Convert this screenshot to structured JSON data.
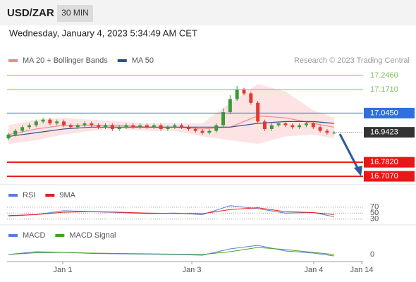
{
  "header": {
    "symbol": "USD/ZAR",
    "timeframe": "30 MIN",
    "datetime": "Wednesday, January 4, 2023 5:34:49 AM CET"
  },
  "chart_data": [
    {
      "type": "candlestick",
      "annotation": "Research © 2023 Trading Central",
      "xlim": [
        -0.2,
        51.2
      ],
      "ylim": [
        16.662,
        17.367
      ],
      "up_color": "#3a9a3a",
      "down_color": "#e03a30",
      "band_color": "#fde3e3",
      "open": [
        16.91,
        16.93,
        16.95,
        16.97,
        16.98,
        17.0,
        17.01,
        16.99,
        17.0,
        16.98,
        16.97,
        16.98,
        16.99,
        16.98,
        16.97,
        16.98,
        16.96,
        16.97,
        16.98,
        16.97,
        16.98,
        16.97,
        16.98,
        16.96,
        16.97,
        16.98,
        16.97,
        16.96,
        16.95,
        16.94,
        16.95,
        16.98,
        17.05,
        17.12,
        17.17,
        17.15,
        17.1,
        17.0,
        16.96,
        16.98,
        16.99,
        16.98,
        16.97,
        16.98,
        16.99,
        16.97,
        16.95,
        16.94
      ],
      "high": [
        16.94,
        16.96,
        16.98,
        16.99,
        17.01,
        17.02,
        17.02,
        17.01,
        17.01,
        16.99,
        16.99,
        17.0,
        17.0,
        16.99,
        16.99,
        16.99,
        16.98,
        16.99,
        16.99,
        16.99,
        16.99,
        16.99,
        16.99,
        16.98,
        16.99,
        16.99,
        16.98,
        16.97,
        16.96,
        16.96,
        16.99,
        17.07,
        17.14,
        17.19,
        17.18,
        17.16,
        17.11,
        17.01,
        16.99,
        17.0,
        17.0,
        16.99,
        16.99,
        17.0,
        17.0,
        16.98,
        16.96,
        16.95
      ],
      "low": [
        16.9,
        16.92,
        16.94,
        16.96,
        16.97,
        16.99,
        16.98,
        16.98,
        16.97,
        16.96,
        16.96,
        16.97,
        16.97,
        16.96,
        16.96,
        16.95,
        16.95,
        16.96,
        16.96,
        16.96,
        16.96,
        16.96,
        16.95,
        16.95,
        16.96,
        16.96,
        16.95,
        16.94,
        16.93,
        16.93,
        16.94,
        16.97,
        17.04,
        17.11,
        17.14,
        17.09,
        16.99,
        16.95,
        16.95,
        16.97,
        16.97,
        16.96,
        16.96,
        16.97,
        16.96,
        16.94,
        16.93,
        16.93
      ],
      "close": [
        16.93,
        16.95,
        16.97,
        16.98,
        17.0,
        17.01,
        16.99,
        17.0,
        16.98,
        16.97,
        16.98,
        16.99,
        16.98,
        16.97,
        16.98,
        16.96,
        16.97,
        16.98,
        16.97,
        16.98,
        16.97,
        16.98,
        16.96,
        16.97,
        16.98,
        16.97,
        16.96,
        16.95,
        16.94,
        16.95,
        16.98,
        17.05,
        17.12,
        17.17,
        17.15,
        17.1,
        17.0,
        16.96,
        16.98,
        16.99,
        16.98,
        16.97,
        16.98,
        16.99,
        16.97,
        16.95,
        16.94,
        16.94
      ],
      "series_x": [
        0,
        4,
        8,
        12,
        16,
        20,
        24,
        28,
        32,
        36,
        40,
        44,
        47
      ],
      "series": [
        {
          "name": "MA 20 + Bollinger Bands",
          "color": "#f08a8a",
          "values": [
            16.93,
            16.96,
            16.98,
            16.98,
            16.98,
            16.97,
            16.97,
            16.96,
            16.97,
            17.03,
            17.02,
            16.99,
            16.97
          ],
          "upper": [
            16.98,
            17.01,
            17.02,
            17.01,
            17.0,
            16.99,
            16.99,
            16.99,
            17.1,
            17.2,
            17.16,
            17.06,
            17.02
          ],
          "lower": [
            16.88,
            16.9,
            16.93,
            16.95,
            16.96,
            16.95,
            16.95,
            16.92,
            16.9,
            16.88,
            16.92,
            16.93,
            16.91
          ]
        },
        {
          "name": "MA 50",
          "color": "#2f4f8f",
          "values": [
            16.92,
            16.94,
            16.96,
            16.97,
            16.97,
            16.97,
            16.97,
            16.97,
            16.97,
            16.99,
            17.0,
            17.0,
            16.99
          ]
        }
      ],
      "levels": [
        {
          "value": 17.246,
          "label": "17.2460",
          "color": "#7cc35a",
          "boxed": false,
          "dotted": false
        },
        {
          "value": 17.171,
          "label": "17.1710",
          "color": "#7cc35a",
          "boxed": false,
          "dotted": false
        },
        {
          "value": 17.045,
          "label": "17.0450",
          "color": "#2f6fe0",
          "boxed": true,
          "dotted": false
        },
        {
          "value": 16.9423,
          "label": "16.9423",
          "color": "#333333",
          "boxed": true,
          "dotted": true
        },
        {
          "value": 16.782,
          "label": "16.7820",
          "color": "#e81818",
          "boxed": true,
          "dotted": false
        },
        {
          "value": 16.707,
          "label": "16.7070",
          "color": "#e81818",
          "boxed": true,
          "dotted": false
        }
      ]
    },
    {
      "type": "line",
      "xlim": [
        -0.2,
        51.2
      ],
      "ylim": [
        13,
        138
      ],
      "yticks": [
        70,
        50,
        30
      ],
      "grid": true,
      "x": [
        0,
        4,
        8,
        12,
        16,
        20,
        24,
        28,
        32,
        36,
        40,
        44,
        47
      ],
      "series": [
        {
          "name": "RSI",
          "color": "#5b7fd0",
          "values": [
            40,
            45,
            58,
            55,
            52,
            48,
            50,
            45,
            75,
            65,
            50,
            52,
            38
          ]
        },
        {
          "name": "9MA",
          "color": "#e02020",
          "values": [
            42,
            45,
            53,
            55,
            53,
            50,
            49,
            48,
            62,
            68,
            55,
            52,
            45
          ]
        }
      ]
    },
    {
      "type": "line",
      "xlim": [
        -0.2,
        51.2
      ],
      "ylim": [
        -0.018,
        0.082
      ],
      "yticks": [
        0
      ],
      "grid": false,
      "x": [
        0,
        4,
        8,
        12,
        16,
        20,
        24,
        28,
        32,
        36,
        40,
        44,
        47
      ],
      "xticks": [
        {
          "value": 7.84,
          "label": "Jan 1"
        },
        {
          "value": 26.47,
          "label": "Jan 3"
        },
        {
          "value": 44.07,
          "label": "Jan 4"
        },
        {
          "value": 51,
          "label": "Jan 14"
        }
      ],
      "series": [
        {
          "name": "MACD",
          "color": "#5b7fd0",
          "values": [
            0.0,
            0.008,
            0.006,
            0.003,
            0.002,
            0.001,
            0.0,
            -0.002,
            0.016,
            0.026,
            0.01,
            0.004,
            -0.004
          ]
        },
        {
          "name": "MACD Signal",
          "color": "#4aa02c",
          "values": [
            0.0,
            0.005,
            0.006,
            0.004,
            0.003,
            0.002,
            0.001,
            0.0,
            0.008,
            0.02,
            0.014,
            0.006,
            0.0
          ]
        }
      ]
    }
  ]
}
